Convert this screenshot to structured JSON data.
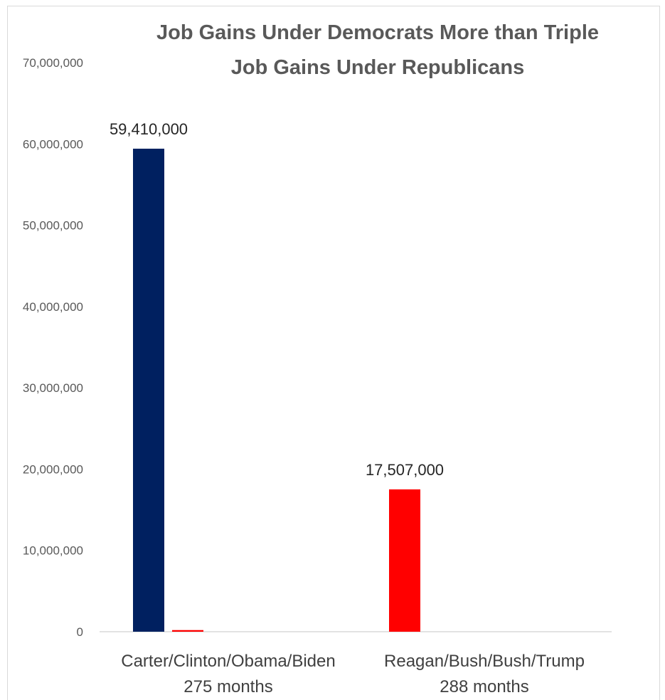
{
  "chart_data": {
    "type": "bar",
    "title": "Job Gains Under Democrats More than Triple Job Gains Under Republicans",
    "title_lines": [
      "Job Gains Under Democrats More than Triple",
      "Job Gains Under Republicans"
    ],
    "categories": [
      [
        "Carter/Clinton/Obama/Biden",
        "275 months"
      ],
      [
        "Reagan/Bush/Bush/Trump",
        "288 months"
      ]
    ],
    "series": [
      {
        "color": "#002060",
        "values": [
          59410000,
          0
        ]
      },
      {
        "color": "#ff0000",
        "values": [
          200000,
          17507000
        ]
      }
    ],
    "data_labels": [
      "59,410,000",
      "17,507,000"
    ],
    "ylim": [
      0,
      70000000
    ],
    "yticks": [
      0,
      10000000,
      20000000,
      30000000,
      40000000,
      50000000,
      60000000,
      70000000
    ],
    "ytick_labels": [
      "0",
      "10,000,000",
      "20,000,000",
      "30,000,000",
      "40,000,000",
      "50,000,000",
      "60,000,000",
      "70,000,000"
    ],
    "xlabel": "",
    "ylabel": "",
    "grid": false,
    "legend": "none"
  }
}
